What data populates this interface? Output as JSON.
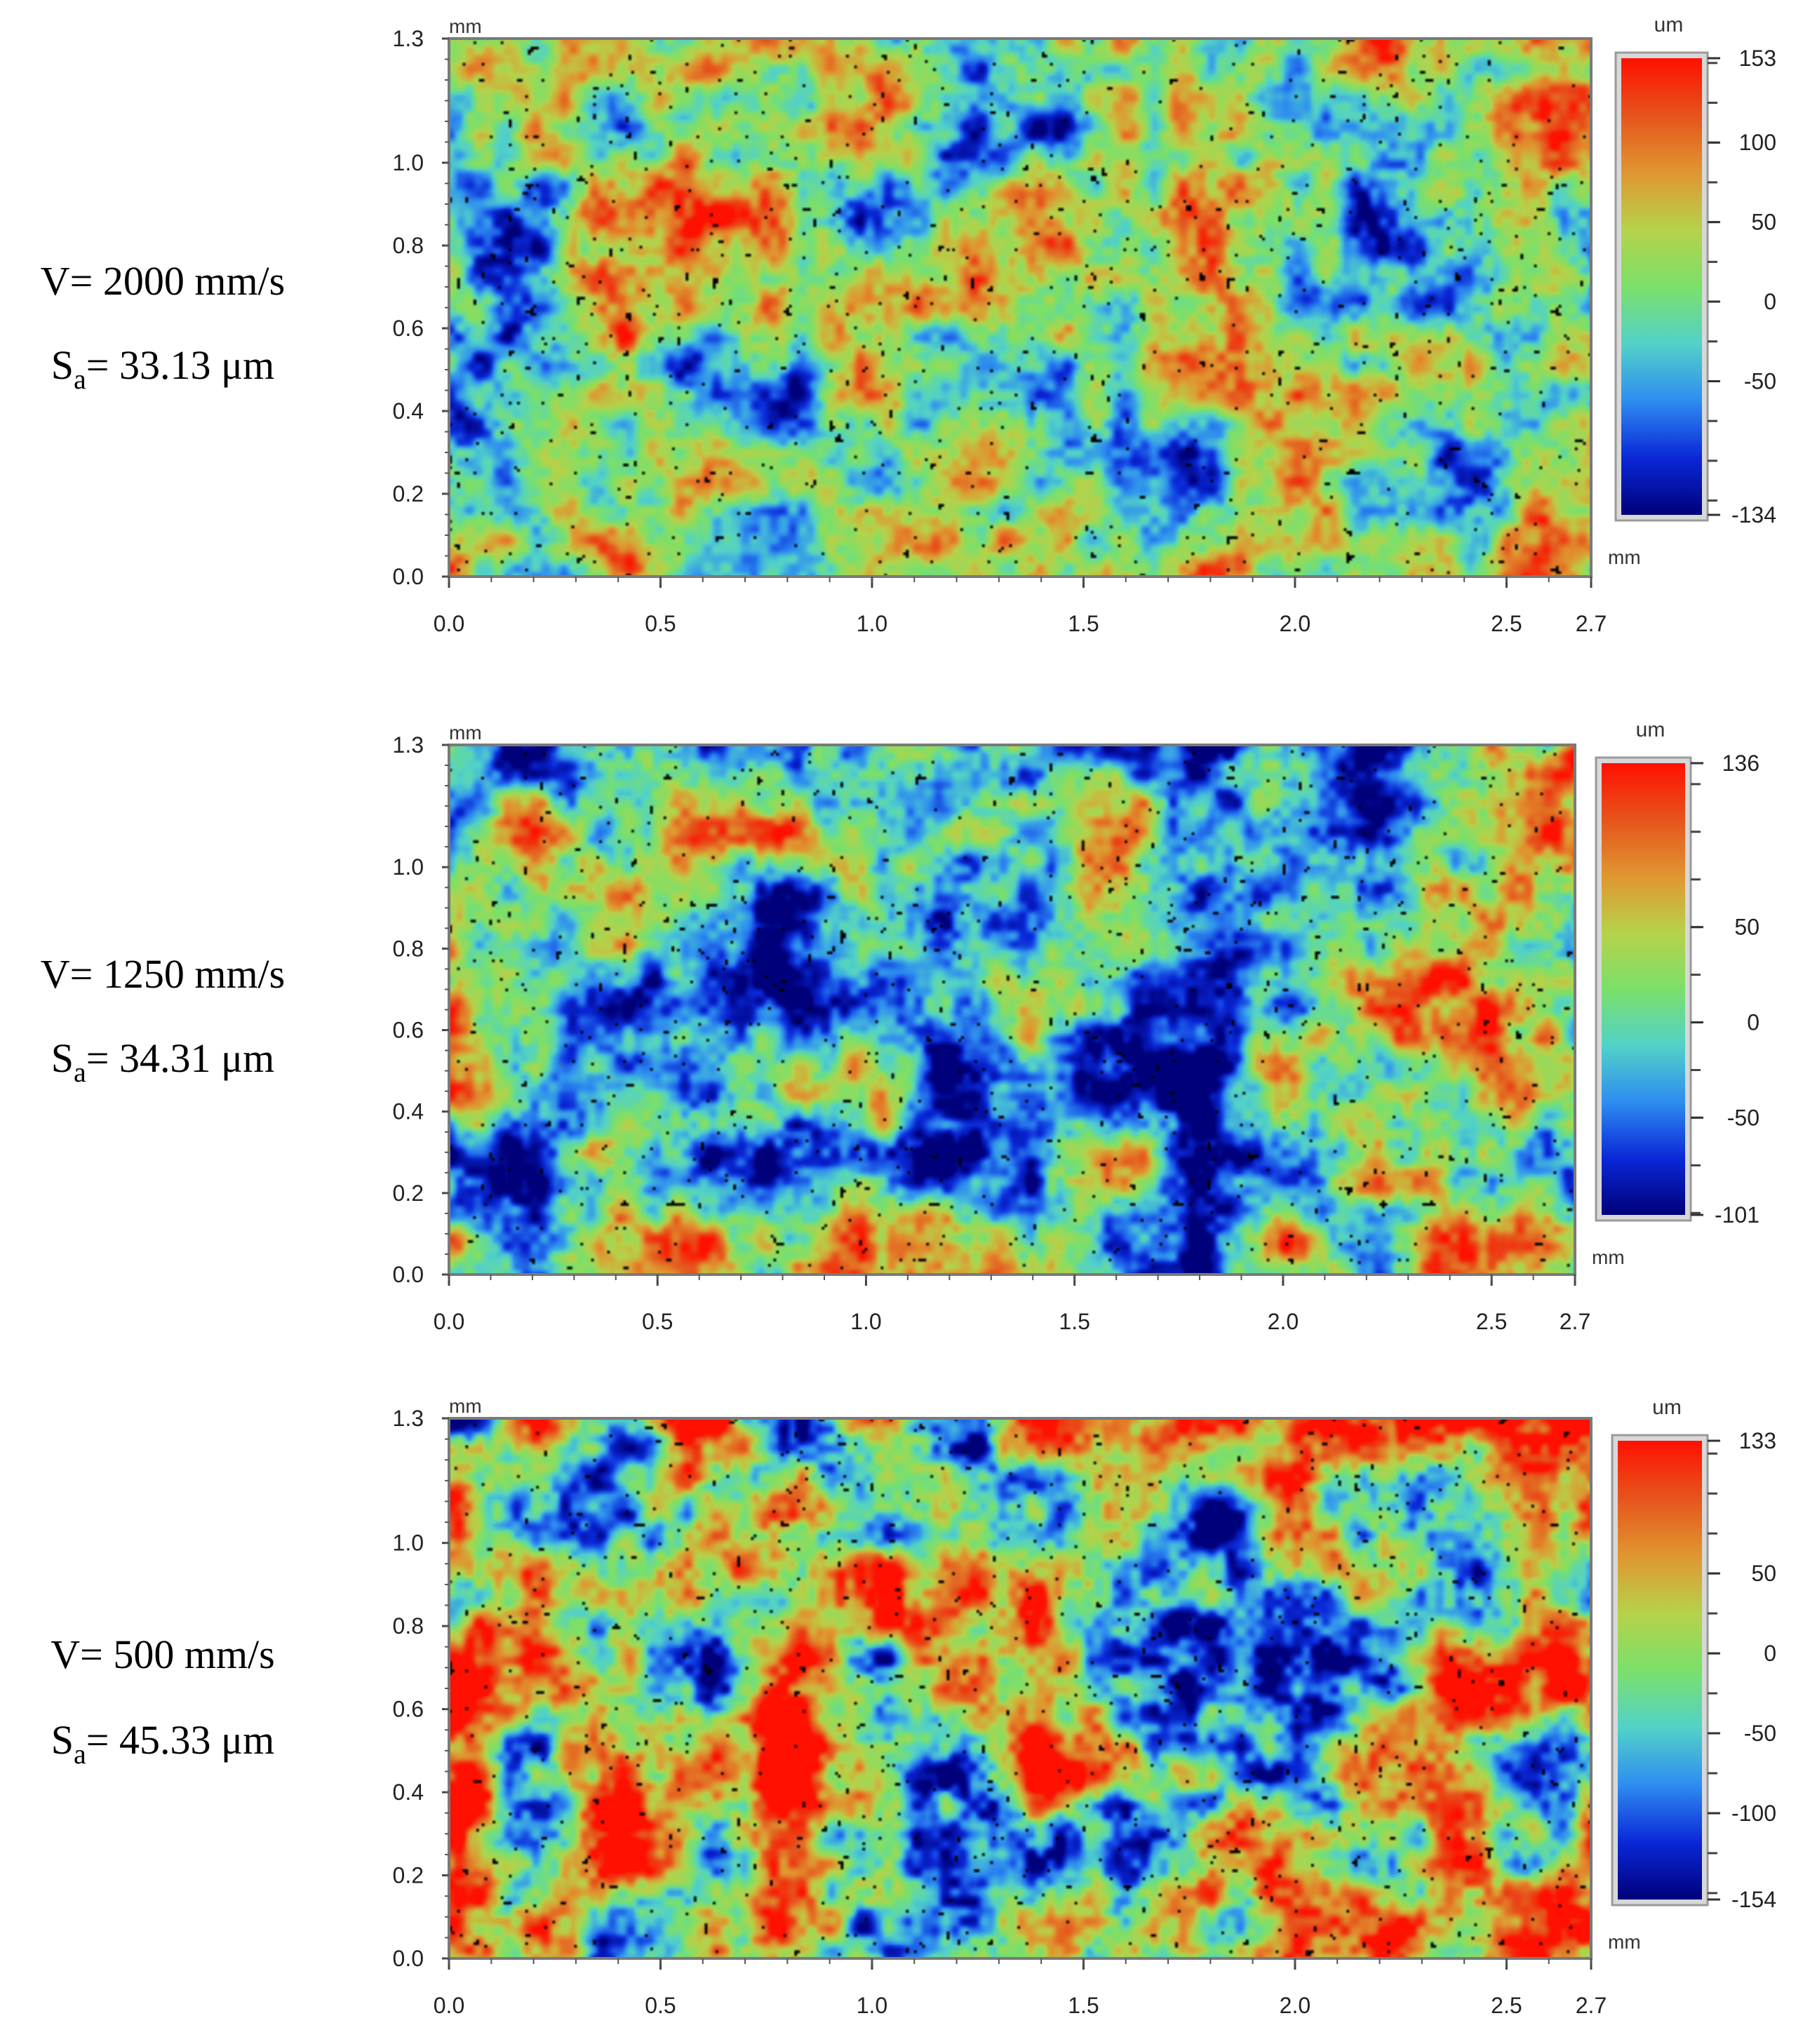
{
  "figure": {
    "panels": [
      {
        "speed_label": "V= 2000 mm/s",
        "roughness_prefix": "S",
        "roughness_sub": "a",
        "roughness_value": "= 33.13 μm",
        "x_unit": "mm",
        "y_unit": "mm",
        "colorbar_unit": "um",
        "x_ticks": [
          "0.0",
          "0.5",
          "1.0",
          "1.5",
          "2.0",
          "2.5",
          "2.7"
        ],
        "y_ticks": [
          "0.0",
          "0.2",
          "0.4",
          "0.6",
          "0.8",
          "1.0",
          "1.3"
        ],
        "colorbar_ticks": [
          "153",
          "100",
          "50",
          "0",
          "-50",
          "-134"
        ]
      },
      {
        "speed_label": "V= 1250 mm/s",
        "roughness_prefix": "S",
        "roughness_sub": "a",
        "roughness_value": "= 34.31 μm",
        "x_unit": "mm",
        "y_unit": "mm",
        "colorbar_unit": "um",
        "x_ticks": [
          "0.0",
          "0.5",
          "1.0",
          "1.5",
          "2.0",
          "2.5",
          "2.7"
        ],
        "y_ticks": [
          "0.0",
          "0.2",
          "0.4",
          "0.6",
          "0.8",
          "1.0",
          "1.3"
        ],
        "colorbar_ticks": [
          "136",
          "50",
          "0",
          "-50",
          "-101"
        ]
      },
      {
        "speed_label": "V= 500 mm/s",
        "roughness_prefix": "S",
        "roughness_sub": "a",
        "roughness_value": "= 45.33 μm",
        "x_unit": "mm",
        "y_unit": "mm",
        "colorbar_unit": "um",
        "x_ticks": [
          "0.0",
          "0.5",
          "1.0",
          "1.5",
          "2.0",
          "2.5",
          "2.7"
        ],
        "y_ticks": [
          "0.0",
          "0.2",
          "0.4",
          "0.6",
          "0.8",
          "1.0",
          "1.3"
        ],
        "colorbar_ticks": [
          "133",
          "50",
          "0",
          "-50",
          "-100",
          "-154"
        ]
      }
    ]
  },
  "chart_data": [
    {
      "type": "heatmap",
      "title": "V= 2000 mm/s, Sa= 33.13 μm",
      "xlabel": "mm",
      "ylabel": "mm",
      "zlabel": "um",
      "xlim": [
        0.0,
        2.7
      ],
      "ylim": [
        0.0,
        1.3
      ],
      "zlim": [
        -134,
        153
      ],
      "x_ticks": [
        0.0,
        0.5,
        1.0,
        1.5,
        2.0,
        2.5,
        2.7
      ],
      "y_ticks": [
        0.0,
        0.2,
        0.4,
        0.6,
        0.8,
        1.0,
        1.3
      ],
      "z_ticks": [
        153,
        100,
        50,
        0,
        -50,
        -134
      ],
      "colormap": [
        "#00007a",
        "#0a28d8",
        "#2e8df0",
        "#52d2c8",
        "#7be06a",
        "#b6d24a",
        "#e09630",
        "#e6541c",
        "#ff1000"
      ],
      "scan_speed_mm_s": 2000,
      "Sa_um": 33.13,
      "seed": 11,
      "bias": 0.02
    },
    {
      "type": "heatmap",
      "title": "V= 1250 mm/s, Sa= 34.31 μm",
      "xlabel": "mm",
      "ylabel": "mm",
      "zlabel": "um",
      "xlim": [
        0.0,
        2.7
      ],
      "ylim": [
        0.0,
        1.3
      ],
      "zlim": [
        -101,
        136
      ],
      "x_ticks": [
        0.0,
        0.5,
        1.0,
        1.5,
        2.0,
        2.5,
        2.7
      ],
      "y_ticks": [
        0.0,
        0.2,
        0.4,
        0.6,
        0.8,
        1.0,
        1.3
      ],
      "z_ticks": [
        136,
        50,
        0,
        -50,
        -101
      ],
      "colormap": [
        "#00007a",
        "#0a28d8",
        "#2e8df0",
        "#52d2c8",
        "#7be06a",
        "#b6d24a",
        "#e09630",
        "#e6541c",
        "#ff1000"
      ],
      "scan_speed_mm_s": 1250,
      "Sa_um": 34.31,
      "seed": 29,
      "bias": -0.05
    },
    {
      "type": "heatmap",
      "title": "V= 500 mm/s, Sa= 45.33 μm",
      "xlabel": "mm",
      "ylabel": "mm",
      "zlabel": "um",
      "xlim": [
        0.0,
        2.7
      ],
      "ylim": [
        0.0,
        1.3
      ],
      "zlim": [
        -154,
        133
      ],
      "x_ticks": [
        0.0,
        0.5,
        1.0,
        1.5,
        2.0,
        2.5,
        2.7
      ],
      "y_ticks": [
        0.0,
        0.2,
        0.4,
        0.6,
        0.8,
        1.0,
        1.3
      ],
      "z_ticks": [
        133,
        50,
        0,
        -50,
        -100,
        -154
      ],
      "colormap": [
        "#00007a",
        "#0a28d8",
        "#2e8df0",
        "#52d2c8",
        "#7be06a",
        "#b6d24a",
        "#e09630",
        "#e6541c",
        "#ff1000"
      ],
      "scan_speed_mm_s": 500,
      "Sa_um": 45.33,
      "seed": 53,
      "bias": 0.1
    }
  ]
}
